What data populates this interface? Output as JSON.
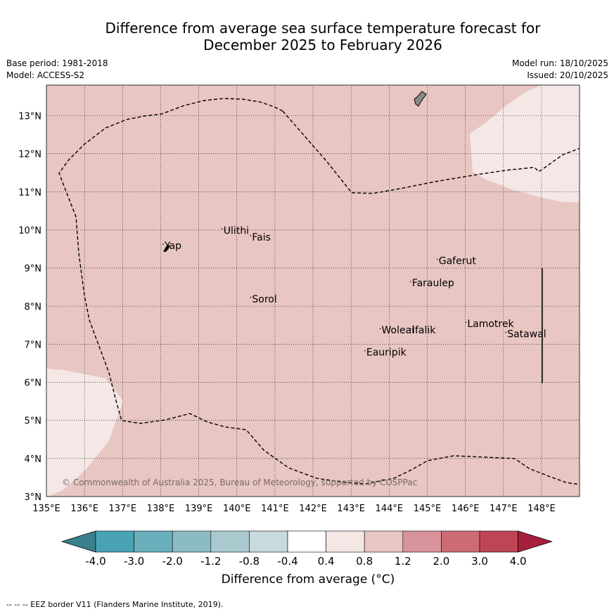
{
  "header": {
    "title_line1": "Difference from average sea surface temperature forecast for",
    "title_line2": "December 2025 to February 2026",
    "base_period": "Base period: 1981-2018",
    "model": "Model: ACCESS-S2",
    "model_run": "Model run: 18/10/2025",
    "issued": "Issued: 20/10/2025"
  },
  "map": {
    "lon_range": [
      135,
      149
    ],
    "lat_range": [
      3,
      13.8
    ],
    "lon_ticks": [
      "135°E",
      "136°E",
      "137°E",
      "138°E",
      "139°E",
      "140°E",
      "141°E",
      "142°E",
      "143°E",
      "144°E",
      "145°E",
      "146°E",
      "147°E",
      "148°E"
    ],
    "lat_ticks": [
      "3°N",
      "4°N",
      "5°N",
      "6°N",
      "7°N",
      "8°N",
      "9°N",
      "10°N",
      "11°N",
      "12°N",
      "13°N"
    ],
    "background_color": "#e8c6c2",
    "light_color": "#f4e7e5",
    "copyright": "© Commonwealth of Australia 2025, Bureau of Meteorology, supported by COSPPac",
    "places": [
      {
        "name": "Yap",
        "lon": 138.1,
        "lat": 9.5
      },
      {
        "name": "Ulithi",
        "lon": 139.65,
        "lat": 9.9
      },
      {
        "name": "Fais",
        "lon": 140.4,
        "lat": 9.72
      },
      {
        "name": "Gaferut",
        "lon": 145.3,
        "lat": 9.1
      },
      {
        "name": "Faraulep",
        "lon": 144.6,
        "lat": 8.52
      },
      {
        "name": "Sorol",
        "lon": 140.4,
        "lat": 8.1
      },
      {
        "name": "Woleai",
        "lon": 143.8,
        "lat": 7.28
      },
      {
        "name": "Ifalik",
        "lon": 144.6,
        "lat": 7.28
      },
      {
        "name": "Lamotrek",
        "lon": 146.05,
        "lat": 7.45
      },
      {
        "name": "Satawal",
        "lon": 147.1,
        "lat": 7.18
      },
      {
        "name": "Eauripik",
        "lon": 143.4,
        "lat": 6.7
      }
    ]
  },
  "colorbar": {
    "ticks": [
      "-4.0",
      "-3.0",
      "-2.0",
      "-1.2",
      "-0.8",
      "-0.4",
      "0.4",
      "0.8",
      "1.2",
      "2.0",
      "3.0",
      "4.0"
    ],
    "colors": [
      "#4aa3b4",
      "#6aafbc",
      "#8bbcc5",
      "#a9c9ce",
      "#c8dadd",
      "#ffffff",
      "#f4e7e5",
      "#e8c6c2",
      "#d9939a",
      "#cc6b75",
      "#be4556"
    ],
    "low_color": "#3a7f8c",
    "high_color": "#a81f3c",
    "label": "Difference from average (°C)"
  },
  "footnote": "--  --  -- EEZ border V11 (Flanders Marine Institute, 2019)."
}
